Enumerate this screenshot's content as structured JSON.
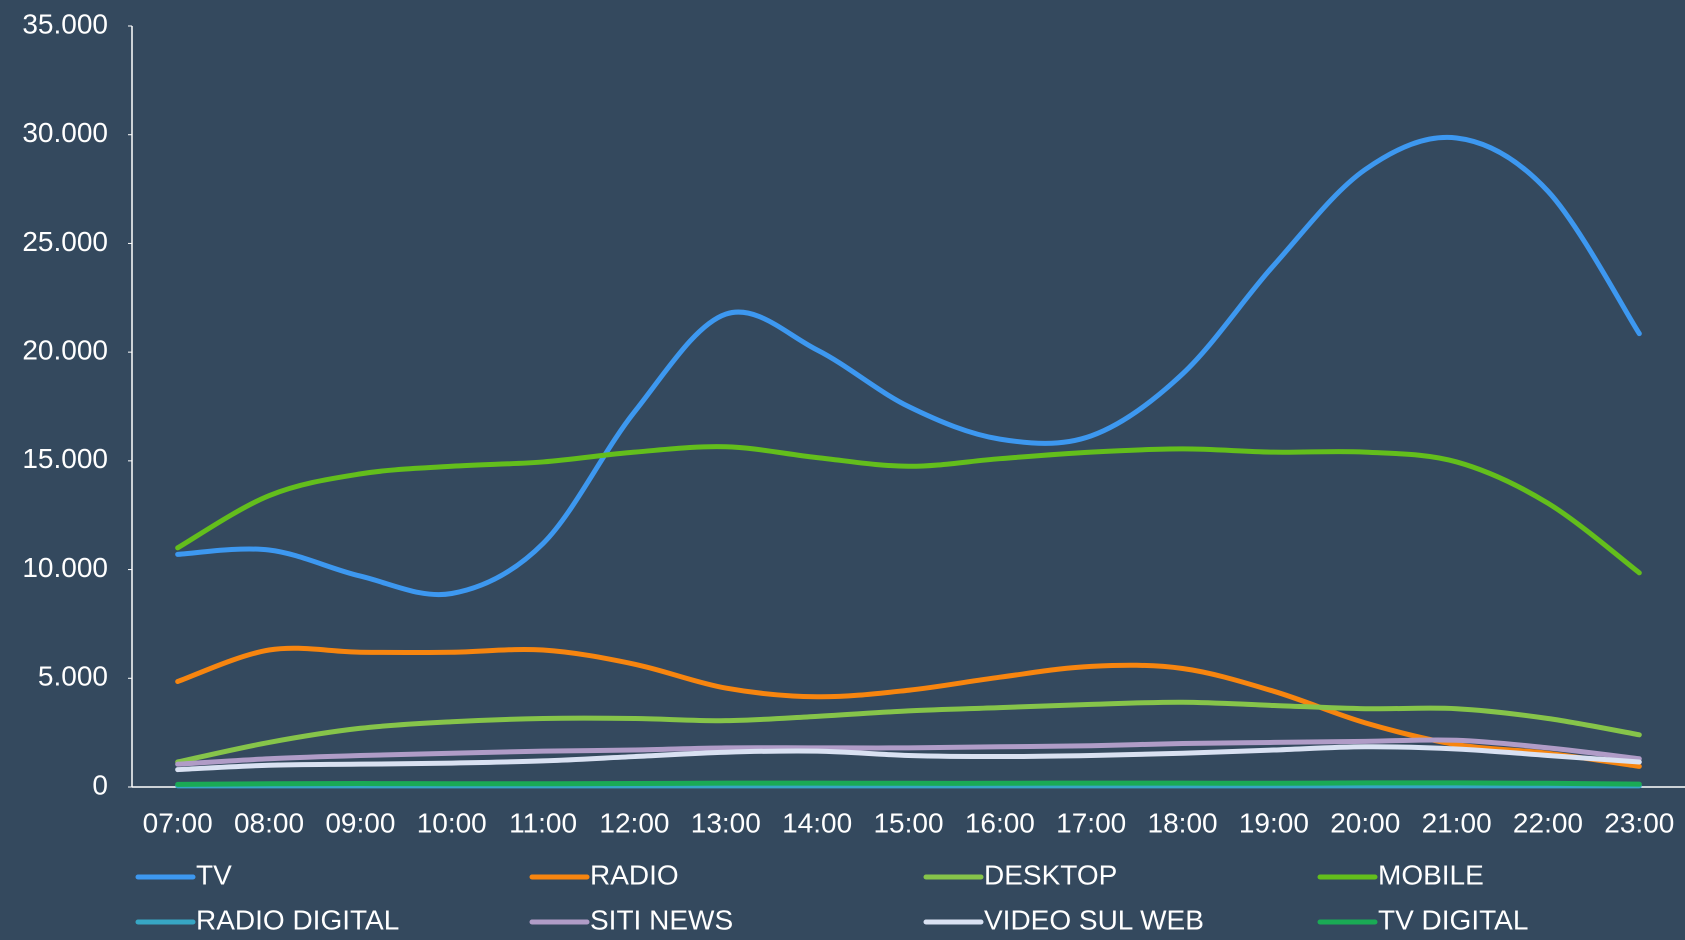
{
  "chart_data": {
    "type": "line",
    "categories": [
      "07:00",
      "08:00",
      "09:00",
      "10:00",
      "11:00",
      "12:00",
      "13:00",
      "14:00",
      "15:00",
      "16:00",
      "17:00",
      "18:00",
      "19:00",
      "20:00",
      "21:00",
      "22:00",
      "23:00"
    ],
    "ylim": [
      0,
      35000
    ],
    "yticks": [
      0,
      {
        "value": 5000,
        "label": "5.000"
      },
      {
        "value": 10000,
        "label": "10.000"
      },
      {
        "value": 15000,
        "label": "15.000"
      },
      {
        "value": 20000,
        "label": "20.000"
      },
      {
        "value": 25000,
        "label": "25.000"
      },
      {
        "value": 30000,
        "label": "30.000"
      },
      {
        "value": 35000,
        "label": "35.000"
      }
    ],
    "grid": false,
    "smooth": true,
    "legend": "bottom",
    "series": [
      {
        "name": "TV",
        "color": "#3d98f0",
        "values": [
          10700,
          10900,
          9700,
          8900,
          11200,
          17250,
          21750,
          20100,
          17500,
          16000,
          16150,
          19000,
          24000,
          28400,
          29850,
          27400,
          20850
        ]
      },
      {
        "name": "RADIO",
        "color": "#f7850f",
        "values": [
          4850,
          6300,
          6200,
          6200,
          6300,
          5650,
          4550,
          4150,
          4450,
          5050,
          5550,
          5450,
          4400,
          2950,
          1950,
          1550,
          950
        ]
      },
      {
        "name": "DESKTOP",
        "color": "#86c44a",
        "values": [
          1150,
          2050,
          2700,
          3000,
          3150,
          3150,
          3050,
          3250,
          3500,
          3650,
          3800,
          3900,
          3750,
          3600,
          3600,
          3150,
          2400
        ]
      },
      {
        "name": "MOBILE",
        "color": "#63be1c",
        "values": [
          11000,
          13400,
          14400,
          14750,
          14950,
          15400,
          15650,
          15150,
          14750,
          15100,
          15400,
          15550,
          15400,
          15400,
          14950,
          13050,
          9850
        ]
      },
      {
        "name": "RADIO DIGITAL",
        "color": "#37a6c4",
        "values": [
          50,
          50,
          50,
          50,
          50,
          50,
          50,
          50,
          50,
          50,
          50,
          50,
          50,
          50,
          50,
          50,
          50
        ]
      },
      {
        "name": "SITI NEWS",
        "color": "#b09cc7",
        "values": [
          1050,
          1300,
          1450,
          1550,
          1650,
          1700,
          1800,
          1800,
          1800,
          1850,
          1900,
          2000,
          2050,
          2100,
          2150,
          1800,
          1300
        ]
      },
      {
        "name": "VIDEO SUL WEB",
        "color": "#d9e1f2",
        "values": [
          800,
          1000,
          1050,
          1100,
          1200,
          1400,
          1600,
          1650,
          1450,
          1400,
          1450,
          1550,
          1700,
          1850,
          1750,
          1450,
          1150
        ]
      },
      {
        "name": "TV DIGITAL",
        "color": "#1aaa55",
        "values": [
          120,
          150,
          160,
          150,
          150,
          160,
          180,
          180,
          170,
          170,
          180,
          180,
          170,
          190,
          190,
          170,
          130
        ]
      }
    ]
  }
}
